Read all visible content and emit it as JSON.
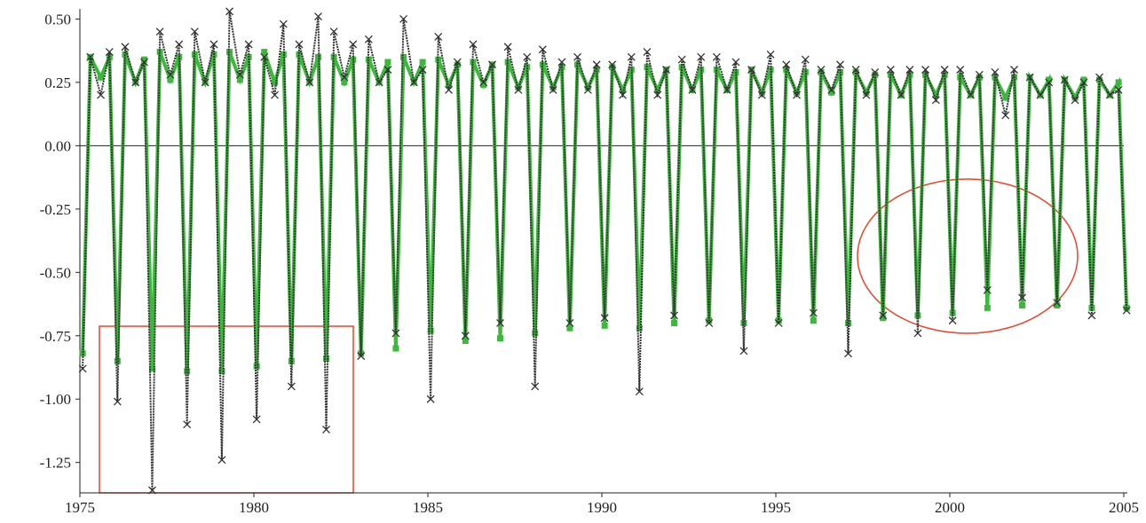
{
  "chart_data": {
    "type": "line",
    "x": [
      1975.08,
      1975.3,
      1975.6,
      1975.85,
      1976.08,
      1976.3,
      1976.6,
      1976.85,
      1977.08,
      1977.3,
      1977.6,
      1977.85,
      1978.08,
      1978.3,
      1978.6,
      1978.85,
      1979.08,
      1979.3,
      1979.6,
      1979.85,
      1980.08,
      1980.3,
      1980.6,
      1980.85,
      1981.08,
      1981.3,
      1981.6,
      1981.85,
      1982.08,
      1982.3,
      1982.6,
      1982.85,
      1983.08,
      1983.3,
      1983.6,
      1983.85,
      1984.08,
      1984.3,
      1984.6,
      1984.85,
      1985.08,
      1985.3,
      1985.6,
      1985.85,
      1986.08,
      1986.3,
      1986.6,
      1986.85,
      1987.08,
      1987.3,
      1987.6,
      1987.85,
      1988.08,
      1988.3,
      1988.6,
      1988.85,
      1989.08,
      1989.3,
      1989.6,
      1989.85,
      1990.08,
      1990.3,
      1990.6,
      1990.85,
      1991.08,
      1991.3,
      1991.6,
      1991.85,
      1992.08,
      1992.3,
      1992.6,
      1992.85,
      1993.08,
      1993.3,
      1993.6,
      1993.85,
      1994.08,
      1994.3,
      1994.6,
      1994.85,
      1995.08,
      1995.3,
      1995.6,
      1995.85,
      1996.08,
      1996.3,
      1996.6,
      1996.85,
      1997.08,
      1997.3,
      1997.6,
      1997.85,
      1998.08,
      1998.3,
      1998.6,
      1998.85,
      1999.08,
      1999.3,
      1999.6,
      1999.85,
      2000.08,
      2000.3,
      2000.6,
      2000.85,
      2001.08,
      2001.3,
      2001.6,
      2001.85,
      2002.08,
      2002.3,
      2002.6,
      2002.85,
      2003.08,
      2003.3,
      2003.6,
      2003.85,
      2004.08,
      2004.3,
      2004.6,
      2004.85,
      2005.08
    ],
    "series": [
      {
        "color": "#3cb93c",
        "marker": "square",
        "values": [
          -0.82,
          0.35,
          0.27,
          0.35,
          -0.85,
          0.36,
          0.25,
          0.34,
          -0.88,
          0.37,
          0.26,
          0.35,
          -0.89,
          0.36,
          0.25,
          0.36,
          -0.89,
          0.37,
          0.26,
          0.35,
          -0.87,
          0.37,
          0.25,
          0.36,
          -0.85,
          0.36,
          0.25,
          0.35,
          -0.84,
          0.35,
          0.25,
          0.34,
          -0.82,
          0.34,
          0.25,
          0.33,
          -0.8,
          0.35,
          0.25,
          0.33,
          -0.73,
          0.34,
          0.24,
          0.32,
          -0.77,
          0.33,
          0.24,
          0.32,
          -0.76,
          0.33,
          0.23,
          0.31,
          -0.74,
          0.32,
          0.23,
          0.31,
          -0.72,
          0.32,
          0.23,
          0.3,
          -0.71,
          0.31,
          0.22,
          0.3,
          -0.72,
          0.31,
          0.22,
          0.3,
          -0.7,
          0.31,
          0.22,
          0.3,
          -0.69,
          0.3,
          0.22,
          0.29,
          -0.7,
          0.3,
          0.21,
          0.3,
          -0.69,
          0.3,
          0.21,
          0.29,
          -0.69,
          0.29,
          0.21,
          0.29,
          -0.7,
          0.29,
          0.21,
          0.28,
          -0.68,
          0.28,
          0.2,
          0.28,
          -0.67,
          0.28,
          0.2,
          0.28,
          -0.66,
          0.27,
          0.2,
          0.27,
          -0.64,
          0.27,
          0.19,
          0.27,
          -0.63,
          0.27,
          0.2,
          0.26,
          -0.63,
          0.26,
          0.19,
          0.26,
          -0.64,
          0.26,
          0.2,
          0.25,
          -0.64
        ]
      },
      {
        "color": "#333333",
        "marker": "x",
        "values": [
          -0.88,
          0.35,
          0.2,
          0.37,
          -1.01,
          0.39,
          0.25,
          0.33,
          -1.36,
          0.45,
          0.28,
          0.4,
          -1.1,
          0.45,
          0.25,
          0.4,
          -1.24,
          0.53,
          0.28,
          0.4,
          -1.08,
          0.35,
          0.2,
          0.48,
          -0.95,
          0.4,
          0.25,
          0.51,
          -1.12,
          0.45,
          0.27,
          0.4,
          -0.83,
          0.42,
          0.25,
          0.3,
          -0.74,
          0.5,
          0.25,
          0.3,
          -1.0,
          0.43,
          0.22,
          0.33,
          -0.75,
          0.4,
          0.25,
          0.32,
          -0.7,
          0.39,
          0.22,
          0.35,
          -0.95,
          0.38,
          0.22,
          0.33,
          -0.7,
          0.35,
          0.22,
          0.32,
          -0.68,
          0.32,
          0.2,
          0.35,
          -0.97,
          0.37,
          0.2,
          0.3,
          -0.67,
          0.34,
          0.22,
          0.35,
          -0.7,
          0.35,
          0.22,
          0.33,
          -0.81,
          0.3,
          0.2,
          0.36,
          -0.7,
          0.32,
          0.2,
          0.34,
          -0.66,
          0.3,
          0.22,
          0.32,
          -0.82,
          0.3,
          0.2,
          0.29,
          -0.67,
          0.3,
          0.2,
          0.3,
          -0.74,
          0.3,
          0.18,
          0.3,
          -0.69,
          0.3,
          0.2,
          0.28,
          -0.57,
          0.29,
          0.12,
          0.3,
          -0.6,
          0.27,
          0.2,
          0.25,
          -0.62,
          0.26,
          0.18,
          0.25,
          -0.67,
          0.27,
          0.2,
          0.22,
          -0.65
        ]
      }
    ],
    "xlim": [
      1975,
      2005
    ],
    "xticks": [
      1975,
      1980,
      1985,
      1990,
      1995,
      2000,
      2005
    ],
    "ylim": [
      -1.37,
      0.54
    ],
    "yticks": [
      {
        "value": 0.5,
        "label": "0.50"
      },
      {
        "value": 0.25,
        "label": "0.25"
      },
      {
        "value": 0,
        "label": "0.00"
      },
      {
        "value": -0.25,
        "label": "-0.25"
      },
      {
        "value": -0.5,
        "label": "-0.50"
      },
      {
        "value": -0.75,
        "label": "-0.75"
      },
      {
        "value": -1,
        "label": "-1.00"
      },
      {
        "value": -1.25,
        "label": "-1.25"
      }
    ],
    "zero_line": true
  }
}
